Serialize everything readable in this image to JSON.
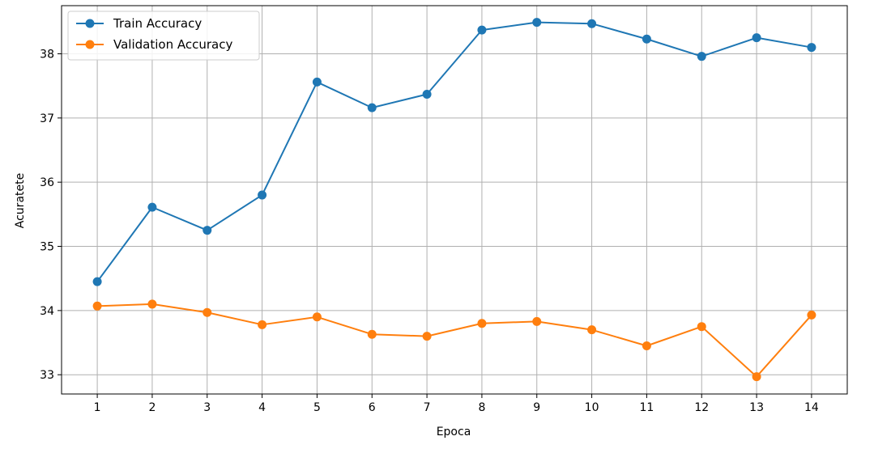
{
  "chart_data": {
    "type": "line",
    "title": "",
    "xlabel": "Epoca",
    "ylabel": "Acuratete",
    "x": [
      1,
      2,
      3,
      4,
      5,
      6,
      7,
      8,
      9,
      10,
      11,
      12,
      13,
      14
    ],
    "xticks": [
      "1",
      "2",
      "3",
      "4",
      "5",
      "6",
      "7",
      "8",
      "9",
      "10",
      "11",
      "12",
      "13",
      "14"
    ],
    "yticks": [
      "33",
      "34",
      "35",
      "36",
      "37",
      "38"
    ],
    "xlim": [
      0.35,
      14.65
    ],
    "ylim": [
      32.7,
      38.75
    ],
    "grid": true,
    "legend_position": "upper-left",
    "series": [
      {
        "name": "Train Accuracy",
        "color": "#1f77b4",
        "marker": "circle",
        "values": [
          34.45,
          35.61,
          35.25,
          35.8,
          37.56,
          37.16,
          37.37,
          38.37,
          38.49,
          38.47,
          38.23,
          37.96,
          38.25,
          38.1
        ]
      },
      {
        "name": "Validation Accuracy",
        "color": "#ff7f0e",
        "marker": "circle",
        "values": [
          34.07,
          34.1,
          33.97,
          33.78,
          33.9,
          33.63,
          33.6,
          33.8,
          33.83,
          33.7,
          33.45,
          33.75,
          32.97,
          33.93
        ]
      }
    ]
  }
}
